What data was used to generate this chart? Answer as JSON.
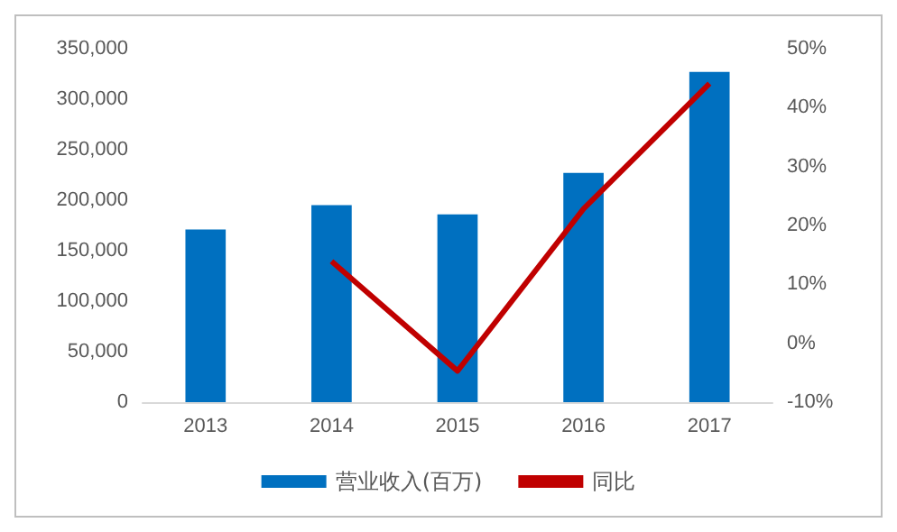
{
  "chart_data": {
    "type": "bar",
    "categories": [
      "2013",
      "2014",
      "2015",
      "2016",
      "2017"
    ],
    "series": [
      {
        "name": "营业收入(百万)",
        "color": "#0070c0",
        "values": [
          171000,
          195000,
          186000,
          227000,
          327000
        ]
      },
      {
        "name": "同比",
        "type": "line",
        "axis": "y2",
        "color": "#c00000",
        "values": [
          null,
          13.9,
          -4.7,
          22.8,
          44.1
        ]
      }
    ],
    "ylim": [
      0,
      350000
    ],
    "yticks": [
      {
        "value": 0,
        "label": "0"
      },
      {
        "value": 50000,
        "label": "50,000"
      },
      {
        "value": 100000,
        "label": "100,000"
      },
      {
        "value": 150000,
        "label": "150,000"
      },
      {
        "value": 200000,
        "label": "200,000"
      },
      {
        "value": 250000,
        "label": "250,000"
      },
      {
        "value": 300000,
        "label": "300,000"
      },
      {
        "value": 350000,
        "label": "350,000"
      }
    ],
    "y2lim": [
      -10,
      50
    ],
    "y2ticks": [
      {
        "value": -10,
        "label": "-10%"
      },
      {
        "value": 0,
        "label": "0%"
      },
      {
        "value": 10,
        "label": "10%"
      },
      {
        "value": 20,
        "label": "20%"
      },
      {
        "value": 30,
        "label": "30%"
      },
      {
        "value": 40,
        "label": "40%"
      },
      {
        "value": 50,
        "label": "50%"
      }
    ],
    "grid": false,
    "legend": "bottom",
    "marker": "none"
  }
}
